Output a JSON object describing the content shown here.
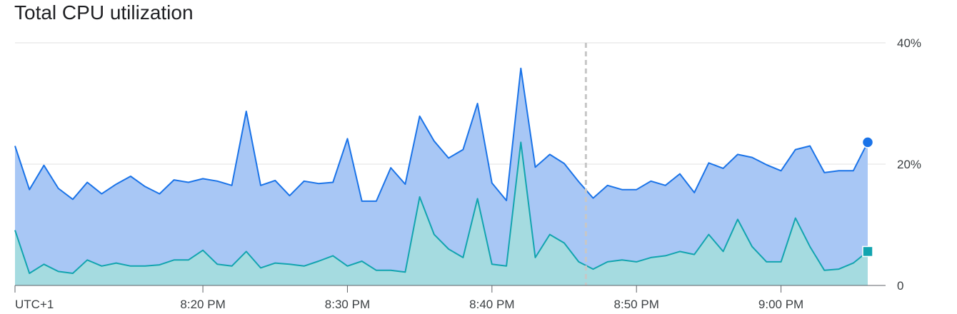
{
  "chart_data": {
    "type": "area",
    "title": "Total CPU utilization",
    "timezone_label": "UTC+1",
    "x_tick_labels": [
      "8:20 PM",
      "8:30 PM",
      "8:40 PM",
      "8:50 PM",
      "9:00 PM"
    ],
    "x_tick_minutes": [
      20,
      30,
      40,
      50,
      60
    ],
    "x_range_minutes": [
      7,
      66
    ],
    "y_tick_labels": [
      "0",
      "20%",
      "40%"
    ],
    "y_tick_values": [
      0,
      20,
      40
    ],
    "ylim": [
      0,
      40
    ],
    "grid": true,
    "stacked": false,
    "cursor_minute": 46.5,
    "x_minutes": [
      7,
      8,
      9,
      10,
      11,
      12,
      13,
      14,
      15,
      16,
      17,
      18,
      19,
      20,
      21,
      22,
      23,
      24,
      25,
      26,
      27,
      28,
      29,
      30,
      31,
      32,
      33,
      34,
      35,
      36,
      37,
      38,
      39,
      40,
      41,
      42,
      43,
      44,
      45,
      46,
      47,
      48,
      49,
      50,
      51,
      52,
      53,
      54,
      55,
      56,
      57,
      58,
      59,
      60,
      61,
      62,
      63,
      64,
      65,
      66
    ],
    "series": [
      {
        "color": "#1a73e8",
        "fill": "#a8c7f5",
        "marker": "circle",
        "values": [
          23.0,
          15.8,
          19.8,
          16.0,
          14.2,
          17.0,
          15.1,
          16.7,
          18.0,
          16.3,
          15.1,
          17.4,
          17.0,
          17.6,
          17.2,
          16.5,
          28.7,
          16.5,
          17.3,
          14.8,
          17.2,
          16.8,
          17.0,
          24.2,
          13.9,
          13.9,
          19.4,
          16.7,
          27.9,
          23.8,
          21.0,
          22.4,
          30.0,
          16.9,
          14.0,
          35.8,
          19.5,
          21.6,
          20.1,
          17.1,
          14.4,
          16.5,
          15.8,
          15.8,
          17.2,
          16.5,
          18.4,
          15.3,
          20.2,
          19.3,
          21.6,
          21.1,
          19.9,
          18.9,
          22.4,
          23.0,
          18.6,
          18.9,
          18.9,
          23.6
        ]
      },
      {
        "color": "#12a4af",
        "fill": "#a5dbe0",
        "marker": "square",
        "values": [
          9.1,
          2.0,
          3.5,
          2.3,
          2.0,
          4.2,
          3.2,
          3.7,
          3.2,
          3.2,
          3.4,
          4.2,
          4.2,
          5.8,
          3.5,
          3.2,
          5.6,
          2.9,
          3.7,
          3.5,
          3.2,
          4.0,
          4.9,
          3.2,
          4.0,
          2.5,
          2.5,
          2.2,
          14.6,
          8.4,
          6.0,
          4.6,
          14.3,
          3.5,
          3.2,
          23.6,
          4.6,
          8.4,
          7.0,
          3.9,
          2.7,
          3.9,
          4.2,
          3.9,
          4.6,
          4.9,
          5.6,
          5.1,
          8.4,
          5.6,
          10.9,
          6.4,
          3.9,
          3.9,
          11.1,
          6.4,
          2.5,
          2.7,
          3.7,
          5.6
        ]
      }
    ]
  }
}
